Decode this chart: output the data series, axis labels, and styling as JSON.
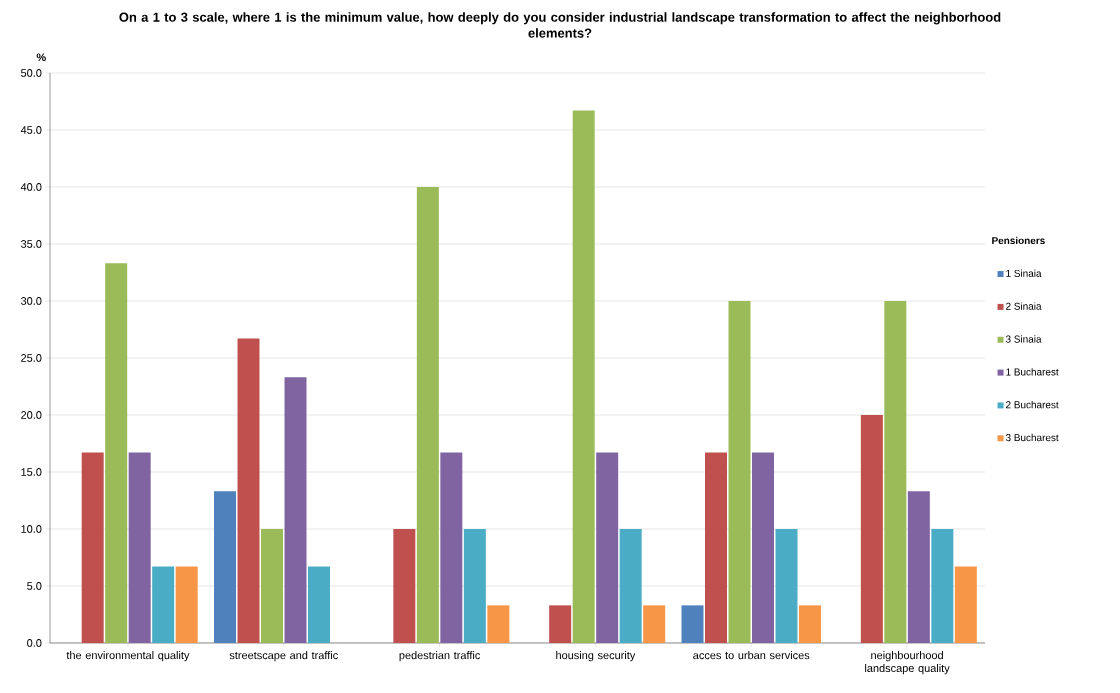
{
  "chart_data": {
    "type": "bar",
    "title": "On a 1 to 3 scale, where 1 is the minimum value, how deeply do you consider industrial landscape transformation to affect the neighborhood elements?",
    "ylabel": "%",
    "legend_title": "Pensioners",
    "categories": [
      "the environmental quality",
      "streetscape and traffic",
      "pedestrian traffic",
      "housing security",
      "acces to urban services",
      "neighbourhood landscape quality"
    ],
    "series": [
      {
        "name": "1 Sinaia",
        "color": "#4f81bd",
        "values": [
          0,
          13.3,
          0,
          0,
          3.3,
          0
        ]
      },
      {
        "name": "2 Sinaia",
        "color": "#c0504d",
        "values": [
          16.7,
          26.7,
          10.0,
          3.3,
          16.7,
          20.0
        ]
      },
      {
        "name": "3 Sinaia",
        "color": "#9bbb59",
        "values": [
          33.3,
          10.0,
          40.0,
          46.7,
          30.0,
          30.0
        ]
      },
      {
        "name": "1 Bucharest",
        "color": "#8064a2",
        "values": [
          16.7,
          23.3,
          16.7,
          16.7,
          16.7,
          13.3
        ]
      },
      {
        "name": "2 Bucharest",
        "color": "#4bacc6",
        "values": [
          6.7,
          6.7,
          10.0,
          10.0,
          10.0,
          10.0
        ]
      },
      {
        "name": "3 Bucharest",
        "color": "#f79646",
        "values": [
          6.7,
          0,
          3.3,
          3.3,
          3.3,
          6.7
        ]
      }
    ],
    "ylim": [
      0,
      50
    ],
    "yticks": [
      {
        "value": 0,
        "label": "0.0"
      },
      {
        "value": 5,
        "label": "5.0"
      },
      {
        "value": 10,
        "label": "10.0"
      },
      {
        "value": 15,
        "label": "15.0"
      },
      {
        "value": 20,
        "label": "20.0"
      },
      {
        "value": 25,
        "label": "25.0"
      },
      {
        "value": 30,
        "label": "30.0"
      },
      {
        "value": 35,
        "label": "35.0"
      },
      {
        "value": 40,
        "label": "40.0"
      },
      {
        "value": 45,
        "label": "45.0"
      },
      {
        "value": 50,
        "label": "50.0"
      }
    ],
    "grid": "y",
    "legend": "right"
  }
}
